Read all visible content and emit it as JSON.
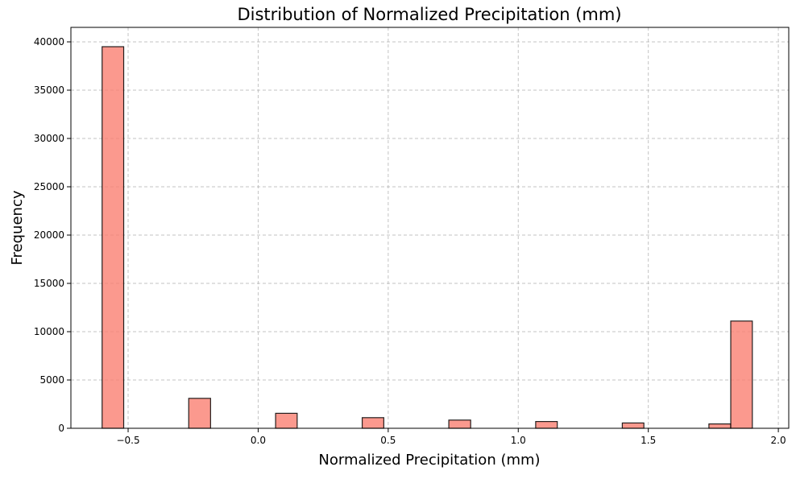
{
  "chart_data": {
    "type": "bar",
    "title": "Distribution of Normalized Precipitation (mm)",
    "xlabel": "Normalized Precipitation (mm)",
    "ylabel": "Frequency",
    "xlim": [
      -0.72,
      2.04
    ],
    "ylim": [
      0,
      41500
    ],
    "xticks": [
      -0.5,
      0.0,
      0.5,
      1.0,
      1.5,
      2.0
    ],
    "xtick_labels": [
      "−0.5",
      "0.0",
      "0.5",
      "1.0",
      "1.5",
      "2.0"
    ],
    "yticks": [
      0,
      5000,
      10000,
      15000,
      20000,
      25000,
      30000,
      35000,
      40000
    ],
    "ytick_labels": [
      "0",
      "5000",
      "10000",
      "15000",
      "20000",
      "25000",
      "30000",
      "35000",
      "40000"
    ],
    "grid": true,
    "bin_range": [
      -0.6,
      1.9
    ],
    "bin_count": 30,
    "bars": [
      {
        "x_start": -0.6,
        "x_end": -0.517,
        "value": 39500
      },
      {
        "x_start": -0.267,
        "x_end": -0.183,
        "value": 3100
      },
      {
        "x_start": 0.067,
        "x_end": 0.15,
        "value": 1550
      },
      {
        "x_start": 0.4,
        "x_end": 0.483,
        "value": 1100
      },
      {
        "x_start": 0.733,
        "x_end": 0.817,
        "value": 850
      },
      {
        "x_start": 1.067,
        "x_end": 1.15,
        "value": 700
      },
      {
        "x_start": 1.4,
        "x_end": 1.483,
        "value": 550
      },
      {
        "x_start": 1.733,
        "x_end": 1.817,
        "value": 450
      },
      {
        "x_start": 1.817,
        "x_end": 1.9,
        "value": 11100
      }
    ],
    "colors": {
      "bar_fill": "#fa8072",
      "bar_edge": "#000000",
      "grid": "#b0b0b0"
    }
  }
}
